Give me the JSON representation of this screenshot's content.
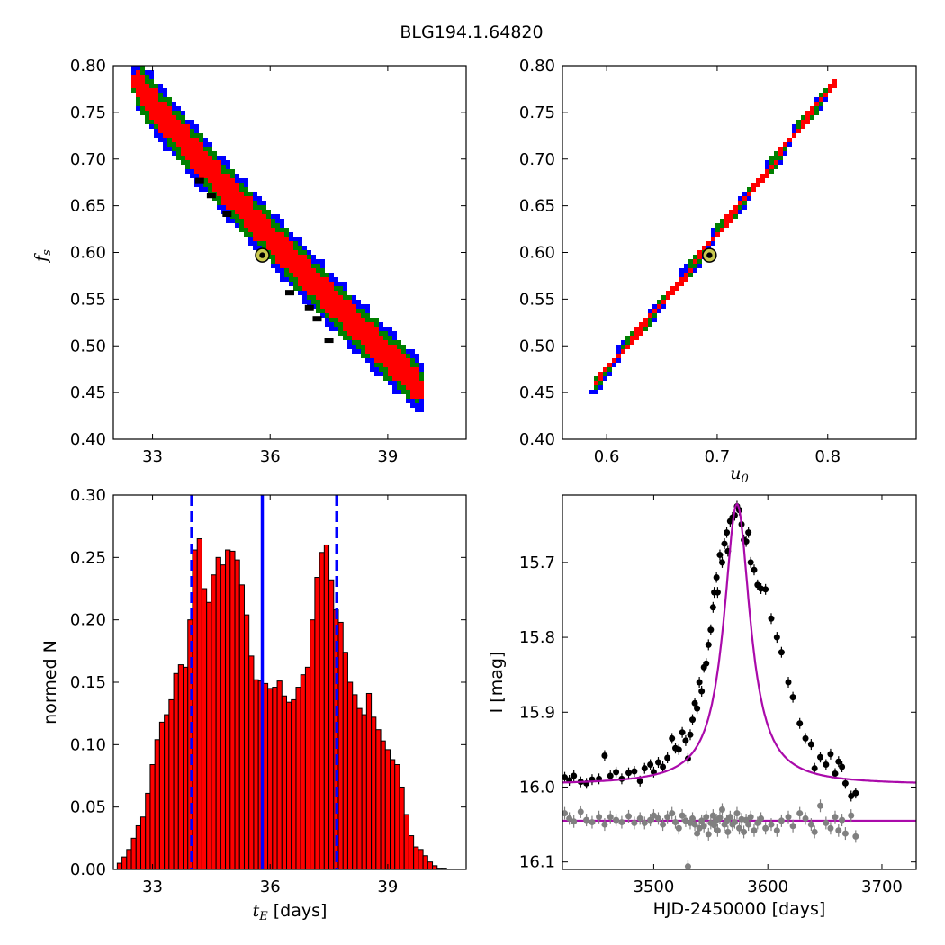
{
  "title": "BLG194.1.64820",
  "colors": {
    "blue": "#0000ff",
    "green": "#008000",
    "red": "#ff0000",
    "black": "#000000",
    "gray": "#808080",
    "magenta": "#aa0aaa",
    "olive": "#c8c850"
  },
  "chart_data": [
    {
      "type": "heatmap",
      "id": "fs_vs_tE",
      "xlabel": "",
      "ylabel_main": "f",
      "ylabel_sub": "s",
      "xlim": [
        32.0,
        41.0
      ],
      "ylim": [
        0.4,
        0.8
      ],
      "xticks": [
        "33",
        "36",
        "39"
      ],
      "yticks": [
        "0.40",
        "0.45",
        "0.50",
        "0.55",
        "0.60",
        "0.65",
        "0.70",
        "0.75",
        "0.80"
      ],
      "x_ticks_values": [
        33,
        36,
        39
      ],
      "y_ticks_values": [
        0.4,
        0.45,
        0.5,
        0.55,
        0.6,
        0.65,
        0.7,
        0.75,
        0.8
      ],
      "band": {
        "x_start": 32.5,
        "y_start": 0.785,
        "x_end": 40.0,
        "y_end": 0.452,
        "sag": 0.012
      },
      "confidence_halfwidths": {
        "blue": 0.03,
        "green": 0.024,
        "red": 0.017
      },
      "best_fit": {
        "x": 35.8,
        "y": 0.597
      },
      "black_clusters": [
        {
          "x": 34.2,
          "y": 0.676
        },
        {
          "x": 34.5,
          "y": 0.66
        },
        {
          "x": 34.9,
          "y": 0.64
        },
        {
          "x": 37.0,
          "y": 0.54
        },
        {
          "x": 37.2,
          "y": 0.528
        },
        {
          "x": 36.5,
          "y": 0.556
        },
        {
          "x": 37.5,
          "y": 0.505
        }
      ]
    },
    {
      "type": "heatmap",
      "id": "fs_vs_u0",
      "xlabel_main": "u",
      "xlabel_sub": "0",
      "ylabel": "",
      "xlim": [
        0.56,
        0.88
      ],
      "ylim": [
        0.4,
        0.8
      ],
      "xticks": [
        "0.6",
        "0.7",
        "0.8"
      ],
      "yticks": [
        "0.40",
        "0.45",
        "0.50",
        "0.55",
        "0.60",
        "0.65",
        "0.70",
        "0.75",
        "0.80"
      ],
      "x_ticks_values": [
        0.6,
        0.7,
        0.8
      ],
      "y_ticks_values": [
        0.4,
        0.45,
        0.5,
        0.55,
        0.6,
        0.65,
        0.7,
        0.75,
        0.8
      ],
      "band": {
        "x_start": 0.585,
        "y_start": 0.452,
        "x_end": 0.807,
        "y_end": 0.785,
        "sag": 0.004
      },
      "confidence_halfwidths": {
        "blue": 0.0075,
        "green": 0.0058,
        "red": 0.0038
      },
      "best_fit": {
        "x": 0.693,
        "y": 0.597
      }
    },
    {
      "type": "bar",
      "id": "tE_histogram",
      "xlabel_main": "t",
      "xlabel_sub": "E",
      "xlabel_unit": " [days]",
      "ylabel": "normed N",
      "xlim": [
        32.0,
        41.0
      ],
      "ylim": [
        0.0,
        0.3
      ],
      "xticks": [
        "33",
        "36",
        "39"
      ],
      "yticks": [
        "0.00",
        "0.05",
        "0.10",
        "0.15",
        "0.20",
        "0.25",
        "0.30"
      ],
      "x_ticks_values": [
        33,
        36,
        39
      ],
      "y_ticks_values": [
        0.0,
        0.05,
        0.1,
        0.15,
        0.2,
        0.25,
        0.3
      ],
      "bin_start": 32.1,
      "bin_width": 0.12,
      "values": [
        0.005,
        0.01,
        0.016,
        0.025,
        0.035,
        0.042,
        0.061,
        0.084,
        0.104,
        0.118,
        0.124,
        0.136,
        0.157,
        0.164,
        0.162,
        0.2,
        0.256,
        0.265,
        0.225,
        0.214,
        0.236,
        0.25,
        0.244,
        0.256,
        0.255,
        0.248,
        0.228,
        0.204,
        0.171,
        0.152,
        0.151,
        0.149,
        0.145,
        0.146,
        0.151,
        0.139,
        0.134,
        0.136,
        0.146,
        0.156,
        0.162,
        0.2,
        0.234,
        0.254,
        0.26,
        0.232,
        0.208,
        0.198,
        0.174,
        0.15,
        0.14,
        0.129,
        0.124,
        0.141,
        0.122,
        0.112,
        0.103,
        0.096,
        0.088,
        0.084,
        0.066,
        0.044,
        0.027,
        0.018,
        0.016,
        0.011,
        0.006,
        0.003,
        0.001,
        0.001
      ],
      "median": 35.8,
      "lower": 34.0,
      "upper": 37.7
    },
    {
      "type": "scatter",
      "id": "lightcurve",
      "xlabel": "HJD-2450000 [days]",
      "ylabel": "I [mag]",
      "xlim": [
        3420,
        3730
      ],
      "ylim": [
        16.11,
        15.61
      ],
      "xticks": [
        "3500",
        "3600",
        "3700"
      ],
      "yticks": [
        "15.7",
        "15.8",
        "15.9",
        "16.0",
        "16.1"
      ],
      "x_ticks_values": [
        3500,
        3600,
        3700
      ],
      "y_ticks_values": [
        15.7,
        15.8,
        15.9,
        16.0,
        16.1
      ],
      "model": {
        "t0": 3573,
        "base": 15.997,
        "amp": 0.375,
        "tau": 14
      },
      "residual_baseline": 16.045,
      "data_black": [
        [
          3422,
          15.987
        ],
        [
          3426,
          15.991
        ],
        [
          3430,
          15.985
        ],
        [
          3436,
          15.993
        ],
        [
          3441,
          15.995
        ],
        [
          3446,
          15.99
        ],
        [
          3452,
          15.989
        ],
        [
          3457,
          15.958
        ],
        [
          3462,
          15.985
        ],
        [
          3467,
          15.98
        ],
        [
          3472,
          15.989
        ],
        [
          3478,
          15.981
        ],
        [
          3483,
          15.979
        ],
        [
          3488,
          15.992
        ],
        [
          3492,
          15.975
        ],
        [
          3497,
          15.97
        ],
        [
          3500,
          15.98
        ],
        [
          3504,
          15.967
        ],
        [
          3508,
          15.973
        ],
        [
          3512,
          15.961
        ],
        [
          3516,
          15.935
        ],
        [
          3519,
          15.948
        ],
        [
          3522,
          15.95
        ],
        [
          3525,
          15.927
        ],
        [
          3528,
          15.938
        ],
        [
          3530,
          15.962
        ],
        [
          3532,
          15.93
        ],
        [
          3534,
          15.91
        ],
        [
          3536,
          15.888
        ],
        [
          3538,
          15.895
        ],
        [
          3540,
          15.86
        ],
        [
          3542,
          15.872
        ],
        [
          3544,
          15.84
        ],
        [
          3546,
          15.835
        ],
        [
          3548,
          15.81
        ],
        [
          3550,
          15.79
        ],
        [
          3552,
          15.76
        ],
        [
          3553,
          15.74
        ],
        [
          3555,
          15.72
        ],
        [
          3556,
          15.74
        ],
        [
          3558,
          15.69
        ],
        [
          3560,
          15.7
        ],
        [
          3562,
          15.675
        ],
        [
          3564,
          15.66
        ],
        [
          3565,
          15.685
        ],
        [
          3567,
          15.645
        ],
        [
          3569,
          15.64
        ],
        [
          3571,
          15.637
        ],
        [
          3573,
          15.625
        ],
        [
          3575,
          15.63
        ],
        [
          3577,
          15.649
        ],
        [
          3579,
          15.67
        ],
        [
          3581,
          15.672
        ],
        [
          3583,
          15.66
        ],
        [
          3585,
          15.7
        ],
        [
          3588,
          15.71
        ],
        [
          3591,
          15.73
        ],
        [
          3594,
          15.735
        ],
        [
          3598,
          15.736
        ],
        [
          3603,
          15.775
        ],
        [
          3608,
          15.8
        ],
        [
          3612,
          15.82
        ],
        [
          3618,
          15.86
        ],
        [
          3622,
          15.88
        ],
        [
          3628,
          15.915
        ],
        [
          3633,
          15.935
        ],
        [
          3638,
          15.943
        ],
        [
          3641,
          15.975
        ],
        [
          3646,
          15.96
        ],
        [
          3651,
          15.97
        ],
        [
          3655,
          15.956
        ],
        [
          3659,
          15.982
        ],
        [
          3662,
          15.966
        ],
        [
          3665,
          15.973
        ],
        [
          3668,
          15.995
        ],
        [
          3673,
          16.012
        ],
        [
          3677,
          16.008
        ]
      ],
      "data_gray": [
        [
          3422,
          16.035
        ],
        [
          3426,
          16.042
        ],
        [
          3430,
          16.046
        ],
        [
          3436,
          16.033
        ],
        [
          3441,
          16.044
        ],
        [
          3446,
          16.047
        ],
        [
          3452,
          16.04
        ],
        [
          3457,
          16.05
        ],
        [
          3462,
          16.04
        ],
        [
          3467,
          16.044
        ],
        [
          3472,
          16.047
        ],
        [
          3478,
          16.039
        ],
        [
          3483,
          16.048
        ],
        [
          3488,
          16.042
        ],
        [
          3492,
          16.048
        ],
        [
          3497,
          16.044
        ],
        [
          3500,
          16.038
        ],
        [
          3504,
          16.042
        ],
        [
          3508,
          16.05
        ],
        [
          3512,
          16.04
        ],
        [
          3516,
          16.035
        ],
        [
          3519,
          16.047
        ],
        [
          3522,
          16.055
        ],
        [
          3525,
          16.038
        ],
        [
          3528,
          16.045
        ],
        [
          3530,
          16.106
        ],
        [
          3532,
          16.048
        ],
        [
          3534,
          16.042
        ],
        [
          3536,
          16.05
        ],
        [
          3538,
          16.062
        ],
        [
          3540,
          16.055
        ],
        [
          3542,
          16.045
        ],
        [
          3544,
          16.052
        ],
        [
          3546,
          16.04
        ],
        [
          3548,
          16.063
        ],
        [
          3550,
          16.048
        ],
        [
          3552,
          16.038
        ],
        [
          3553,
          16.051
        ],
        [
          3555,
          16.044
        ],
        [
          3556,
          16.058
        ],
        [
          3558,
          16.041
        ],
        [
          3560,
          16.03
        ],
        [
          3562,
          16.05
        ],
        [
          3564,
          16.045
        ],
        [
          3565,
          16.06
        ],
        [
          3567,
          16.04
        ],
        [
          3569,
          16.05
        ],
        [
          3571,
          16.047
        ],
        [
          3573,
          16.035
        ],
        [
          3575,
          16.055
        ],
        [
          3577,
          16.043
        ],
        [
          3579,
          16.06
        ],
        [
          3581,
          16.044
        ],
        [
          3583,
          16.05
        ],
        [
          3585,
          16.04
        ],
        [
          3588,
          16.058
        ],
        [
          3591,
          16.048
        ],
        [
          3594,
          16.042
        ],
        [
          3598,
          16.055
        ],
        [
          3603,
          16.05
        ],
        [
          3608,
          16.058
        ],
        [
          3612,
          16.045
        ],
        [
          3618,
          16.04
        ],
        [
          3622,
          16.052
        ],
        [
          3628,
          16.035
        ],
        [
          3633,
          16.042
        ],
        [
          3638,
          16.05
        ],
        [
          3641,
          16.06
        ],
        [
          3646,
          16.025
        ],
        [
          3651,
          16.048
        ],
        [
          3655,
          16.055
        ],
        [
          3659,
          16.04
        ],
        [
          3662,
          16.058
        ],
        [
          3665,
          16.044
        ],
        [
          3668,
          16.062
        ],
        [
          3673,
          16.038
        ],
        [
          3677,
          16.066
        ]
      ]
    }
  ]
}
